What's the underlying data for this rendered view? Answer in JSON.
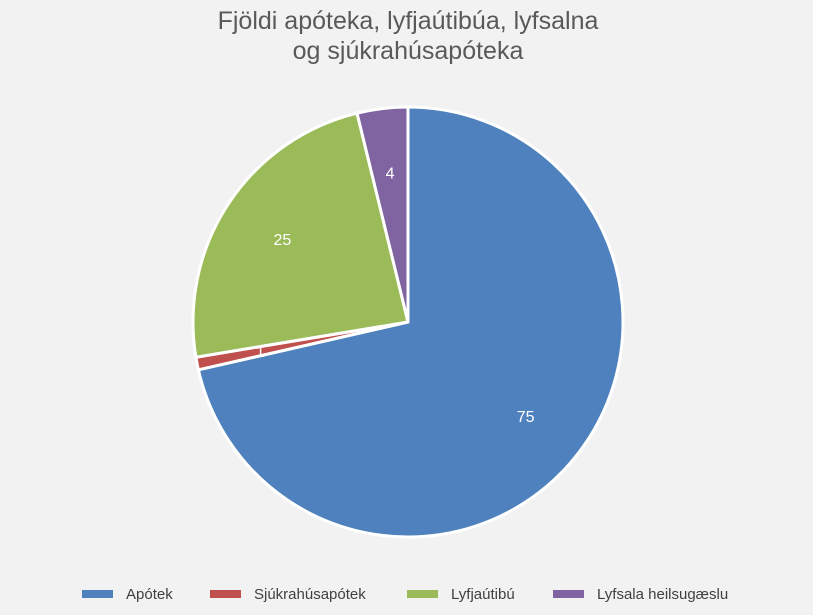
{
  "chart_data": {
    "type": "pie",
    "title_lines": [
      "Fjöldi apóteka, lyfjaútibúa, lyfsalna",
      "og sjúkrahúsapóteka"
    ],
    "slices": [
      {
        "name": "Apótek",
        "value": 75,
        "color": "#4e81bd",
        "label": "75"
      },
      {
        "name": "Sjúkrahúsapótek",
        "value": 1,
        "color": "#c0504d",
        "label": "1"
      },
      {
        "name": "Lyfjaútibú",
        "value": 25,
        "color": "#9bbb59",
        "label": "25"
      },
      {
        "name": "Lyfsala heilsugæslu",
        "value": 4,
        "color": "#8064a2",
        "label": "4"
      }
    ],
    "legend_position": "bottom"
  }
}
